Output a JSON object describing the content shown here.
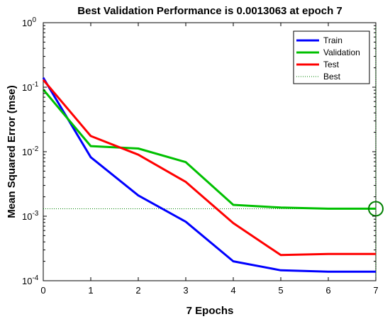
{
  "chart_data": {
    "type": "line",
    "title": "Best Validation Performance is 0.0013063 at epoch 7",
    "xlabel": "7 Epochs",
    "ylabel": "Mean Squared Error  (mse)",
    "xlim": [
      0,
      7
    ],
    "ylim": [
      0.0001,
      1
    ],
    "yscale": "log",
    "x_ticks": [
      "0",
      "1",
      "2",
      "3",
      "4",
      "5",
      "6",
      "7"
    ],
    "y_ticks": [
      {
        "base": "10",
        "exp": "-4",
        "value": 0.0001
      },
      {
        "base": "10",
        "exp": "-3",
        "value": 0.001
      },
      {
        "base": "10",
        "exp": "-2",
        "value": 0.01
      },
      {
        "base": "10",
        "exp": "-1",
        "value": 0.1
      },
      {
        "base": "10",
        "exp": "0",
        "value": 1
      }
    ],
    "x": [
      0,
      1,
      2,
      3,
      4,
      5,
      6,
      7
    ],
    "series": [
      {
        "name": "Train",
        "color": "#0000ff",
        "values": [
          0.14,
          0.0082,
          0.0021,
          0.00082,
          0.0002,
          0.000145,
          0.000138,
          0.000138
        ]
      },
      {
        "name": "Validation",
        "color": "#00c000",
        "values": [
          0.092,
          0.0122,
          0.0112,
          0.0069,
          0.0015,
          0.00136,
          0.0013063,
          0.0013063
        ]
      },
      {
        "name": "Test",
        "color": "#ff0000",
        "values": [
          0.13,
          0.0175,
          0.009,
          0.0034,
          0.00078,
          0.00025,
          0.00026,
          0.00026
        ]
      }
    ],
    "best": {
      "name": "Best",
      "epoch": 7,
      "value": 0.0013063,
      "color": "#008000"
    },
    "legend_position": "top-right",
    "grid": false
  }
}
